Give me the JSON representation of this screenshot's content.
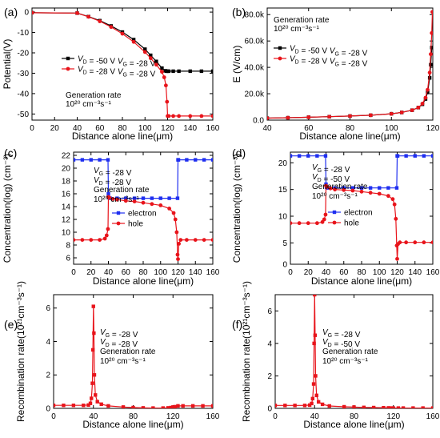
{
  "figure": {
    "panel_labels": [
      "(a)",
      "(b)",
      "(c)",
      "(d)",
      "(e)",
      "(f)"
    ]
  },
  "chart_data": [
    {
      "panel": "(a)",
      "type": "scatter",
      "xlabel": "Distance alone line(μm)",
      "ylabel": "Potential(V)",
      "xlim": [
        0,
        160
      ],
      "ylim": [
        -53,
        2
      ],
      "xticks": [
        0,
        20,
        40,
        60,
        80,
        100,
        120,
        140,
        160
      ],
      "yticks": [
        0,
        -10,
        -20,
        -30,
        -40,
        -50
      ],
      "legend_position": "left-middle",
      "annotation": [
        "Generation rate",
        "10²⁰ cm⁻³s⁻¹"
      ],
      "series": [
        {
          "name": "VD = -50 V  VG = -28 V",
          "color": "#000000",
          "marker": "square",
          "x": [
            0,
            40,
            50,
            60,
            70,
            80,
            90,
            100,
            105,
            110,
            115,
            118,
            119,
            120,
            121,
            125,
            130,
            140,
            150,
            160
          ],
          "y": [
            -0.3,
            -0.5,
            -2.2,
            -4.2,
            -6.8,
            -9.8,
            -13.5,
            -18.2,
            -21.2,
            -24.2,
            -27.5,
            -28.8,
            -29,
            -29,
            -29,
            -29,
            -29,
            -29,
            -29,
            -29
          ]
        },
        {
          "name": "VD = -28 V  VG = -28 V",
          "color": "#e8141b",
          "marker": "circle",
          "x": [
            0,
            40,
            50,
            60,
            70,
            80,
            90,
            100,
            105,
            110,
            115,
            117,
            118.5,
            119.5,
            120,
            121,
            125,
            130,
            140,
            150,
            160
          ],
          "y": [
            -0.3,
            -0.5,
            -2.3,
            -4.5,
            -7.3,
            -10.6,
            -14.6,
            -19.6,
            -22.6,
            -25.8,
            -29.3,
            -32,
            -36,
            -44,
            -51,
            -51,
            -51,
            -51,
            -51,
            -51,
            -51
          ]
        }
      ]
    },
    {
      "panel": "(b)",
      "type": "scatter",
      "xlabel": "Distance alone line(μm)",
      "ylabel": "E (V/cm)",
      "xlim": [
        40,
        120
      ],
      "ylim": [
        0,
        85000
      ],
      "xticks": [
        40,
        60,
        80,
        100,
        120
      ],
      "yticks": [
        0,
        20000,
        40000,
        60000,
        80000
      ],
      "ytick_labels": [
        "0.0",
        "20.0k",
        "40.0k",
        "60.0k",
        "80.0k"
      ],
      "legend_position": "top-right",
      "annotation": [
        "Generation rate",
        "10²⁰ cm⁻³s⁻¹"
      ],
      "series": [
        {
          "name": "VD = -50 V  VG = -28 V",
          "color": "#000000",
          "marker": "square",
          "x": [
            40,
            50,
            60,
            70,
            80,
            90,
            100,
            105,
            110,
            113,
            115,
            116.5,
            117.5,
            118.5,
            119,
            119.5
          ],
          "y": [
            1500,
            1800,
            2200,
            2600,
            3100,
            3700,
            4800,
            5800,
            7500,
            9500,
            12000,
            16000,
            21000,
            32000,
            42000,
            55000
          ]
        },
        {
          "name": "VD = -28 V  VG = -28 V",
          "color": "#e8141b",
          "marker": "circle",
          "x": [
            40,
            50,
            60,
            70,
            80,
            90,
            100,
            105,
            110,
            113,
            115,
            116.5,
            117.5,
            118.5,
            119,
            119.5,
            119.8
          ],
          "y": [
            1500,
            1800,
            2200,
            2600,
            3100,
            3700,
            4800,
            5800,
            7500,
            9500,
            12500,
            17000,
            23000,
            36000,
            50000,
            66000,
            82000
          ]
        }
      ]
    },
    {
      "panel": "(c)",
      "type": "line",
      "xlabel": "Distance alone line(μm)",
      "ylabel": "Concentration(log) (cm⁻³)",
      "xlim": [
        0,
        160
      ],
      "ylim": [
        5,
        22.5
      ],
      "xticks": [
        0,
        20,
        40,
        60,
        80,
        100,
        120,
        140,
        160
      ],
      "yticks": [
        6,
        8,
        10,
        12,
        14,
        16,
        18,
        20,
        22
      ],
      "legend_position": "center",
      "annotation": [
        "VG = -28 V",
        "VD = -28 V",
        "Generation rate",
        "10²⁰ cm⁻³s⁻¹"
      ],
      "series": [
        {
          "name": "electron",
          "color": "#1f2ff0",
          "marker": "square",
          "x": [
            0,
            10,
            20,
            30,
            39.5,
            40,
            40.5,
            42,
            50,
            60,
            70,
            80,
            90,
            100,
            110,
            119.5,
            120,
            120.5,
            130,
            140,
            150,
            160
          ],
          "y": [
            21.3,
            21.3,
            21.3,
            21.3,
            21.3,
            16,
            15.4,
            15.3,
            15.3,
            15.3,
            15.3,
            15.3,
            15.3,
            15.3,
            15.3,
            15.3,
            21.3,
            21.3,
            21.3,
            21.3,
            21.3,
            21.3
          ]
        },
        {
          "name": "hole",
          "color": "#e8141b",
          "marker": "circle",
          "x": [
            0,
            10,
            20,
            30,
            36,
            38,
            39.5,
            40,
            41,
            45,
            50,
            60,
            70,
            80,
            90,
            100,
            110,
            115,
            117,
            118.5,
            119.5,
            120,
            121,
            123,
            130,
            140,
            150,
            160
          ],
          "y": [
            8.8,
            8.8,
            8.8,
            8.8,
            9,
            9.5,
            10.5,
            15.5,
            15.4,
            15.2,
            15.1,
            14.9,
            14.8,
            14.6,
            14.4,
            14.2,
            13.7,
            13,
            12,
            10,
            6.5,
            5.8,
            8.2,
            8.8,
            8.8,
            8.8,
            8.8,
            8.8
          ]
        }
      ]
    },
    {
      "panel": "(d)",
      "type": "line",
      "xlabel": "Distance alone line(μm)",
      "ylabel": "Concentration(log) (cm⁻³)",
      "xlim": [
        0,
        160
      ],
      "ylim": [
        1,
        22
      ],
      "xticks": [
        0,
        20,
        40,
        60,
        80,
        100,
        120,
        140,
        160
      ],
      "yticks": [
        0,
        5,
        10,
        15,
        20
      ],
      "legend_position": "center",
      "annotation": [
        "VG = -28 V",
        "VD = -50 V",
        "Generation rate",
        "10²⁰ cm⁻³s⁻¹"
      ],
      "series": [
        {
          "name": "electron",
          "color": "#1f2ff0",
          "marker": "square",
          "x": [
            0,
            10,
            20,
            30,
            39.5,
            40,
            40.5,
            42,
            50,
            60,
            70,
            80,
            90,
            100,
            110,
            119.5,
            120,
            120.5,
            130,
            140,
            150,
            160
          ],
          "y": [
            21.3,
            21.3,
            21.3,
            21.3,
            21.3,
            16,
            15.4,
            15.3,
            15.3,
            15.3,
            15.3,
            15.3,
            15.3,
            15.3,
            15.3,
            15.3,
            21.3,
            21.3,
            21.3,
            21.3,
            21.3,
            21.3
          ]
        },
        {
          "name": "hole",
          "color": "#e8141b",
          "marker": "circle",
          "x": [
            0,
            10,
            20,
            30,
            36,
            38,
            39.5,
            40,
            41,
            45,
            50,
            60,
            70,
            80,
            90,
            100,
            110,
            115,
            117,
            118.5,
            119.5,
            120,
            121,
            123,
            130,
            140,
            150,
            160
          ],
          "y": [
            8.7,
            8.7,
            8.7,
            8.7,
            8.9,
            9.4,
            10.3,
            15.7,
            15.5,
            15.2,
            15,
            14.9,
            14.8,
            14.6,
            14.4,
            14.2,
            13.8,
            13.2,
            12.2,
            9.5,
            4.5,
            2,
            4.8,
            5.1,
            5.1,
            5.1,
            5.1,
            5.1
          ]
        }
      ]
    },
    {
      "panel": "(e)",
      "type": "line",
      "xlabel": "Distance alone line(μm)",
      "ylabel": "Recombination rate(10²¹cm⁻³s⁻¹)",
      "xlim": [
        0,
        160
      ],
      "ylim": [
        0,
        6.8
      ],
      "xticks": [
        0,
        40,
        80,
        120,
        160
      ],
      "yticks": [
        0,
        2,
        4,
        6
      ],
      "legend_position": "none",
      "annotation": [
        "VG = -28 V",
        "VD = -28 V",
        "Generation rate",
        "10²⁰ cm⁻³s⁻¹"
      ],
      "series": [
        {
          "name": "",
          "color": "#e8141b",
          "marker": "square",
          "x": [
            0,
            10,
            20,
            30,
            35,
            37,
            38,
            39,
            39.5,
            40,
            40.5,
            41,
            42,
            44,
            48,
            55,
            70,
            80,
            90,
            100,
            110,
            115,
            118,
            120,
            122,
            125,
            130,
            140,
            150,
            160
          ],
          "y": [
            0.18,
            0.18,
            0.18,
            0.18,
            0.2,
            0.3,
            0.6,
            1.5,
            3.5,
            6.1,
            4.5,
            2,
            0.8,
            0.4,
            0.25,
            0.15,
            0.08,
            0.05,
            0.03,
            0.02,
            0.02,
            0.03,
            0.05,
            0.08,
            0.1,
            0.15,
            0.15,
            0.15,
            0.15,
            0.15
          ]
        }
      ]
    },
    {
      "panel": "(f)",
      "type": "line",
      "xlabel": "Distance alone line(μm)",
      "ylabel": "Recombination rate(10²¹cm⁻³s⁻¹)",
      "xlim": [
        0,
        160
      ],
      "ylim": [
        0,
        7
      ],
      "xticks": [
        0,
        40,
        80,
        120,
        160
      ],
      "yticks": [
        0,
        2,
        4,
        6
      ],
      "legend_position": "none",
      "annotation": [
        "VG = -28 V",
        "VD = -50 V",
        "Generation rate",
        "10²⁰ cm⁻³s⁻¹"
      ],
      "series": [
        {
          "name": "",
          "color": "#e8141b",
          "marker": "square",
          "x": [
            0,
            10,
            20,
            30,
            35,
            37,
            38,
            39,
            39.5,
            40,
            40.5,
            41,
            42,
            44,
            48,
            55,
            70,
            80,
            90,
            100,
            110,
            115,
            118,
            120,
            125,
            130,
            140,
            150,
            160
          ],
          "y": [
            0.18,
            0.18,
            0.18,
            0.18,
            0.2,
            0.3,
            0.6,
            1.5,
            4,
            7,
            4.5,
            2,
            0.8,
            0.4,
            0.25,
            0.15,
            0.1,
            0.08,
            0.06,
            0.05,
            0.04,
            0.03,
            0.02,
            0.02,
            0.02,
            0.02,
            0.02,
            0.02,
            0.02
          ]
        }
      ]
    }
  ]
}
